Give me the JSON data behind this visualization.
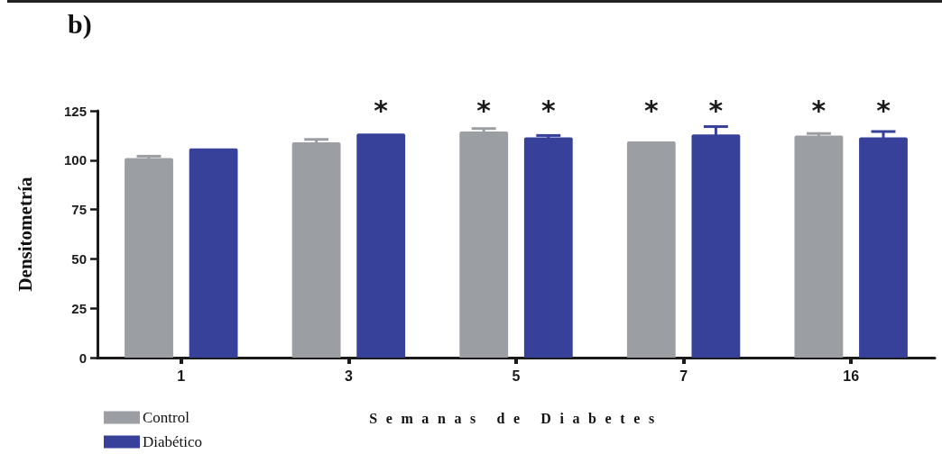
{
  "chart_data": {
    "type": "bar",
    "title": "b)",
    "xlabel": "Semanas de Diabetes",
    "ylabel": "Densitometría",
    "categories": [
      "1",
      "3",
      "5",
      "7",
      "16"
    ],
    "series": [
      {
        "name": "Control",
        "color": "#9b9ea3",
        "values": [
          101,
          109,
          114.5,
          109.5,
          112.5
        ],
        "errors": [
          1,
          1.5,
          1.5,
          null,
          1
        ],
        "value_labels": [
          null,
          null,
          "*",
          "*",
          "*"
        ]
      },
      {
        "name": "Diabético",
        "color": "#37419a",
        "values": [
          106,
          113.5,
          111.5,
          113,
          111.5
        ],
        "errors": [
          null,
          null,
          1,
          4,
          3
        ],
        "value_labels": [
          null,
          "*",
          "*",
          "*",
          "*"
        ]
      }
    ],
    "ylim": [
      0,
      125
    ],
    "yticks": [
      0,
      25,
      50,
      75,
      100,
      125
    ],
    "grid": false,
    "legend": "bottom left"
  }
}
